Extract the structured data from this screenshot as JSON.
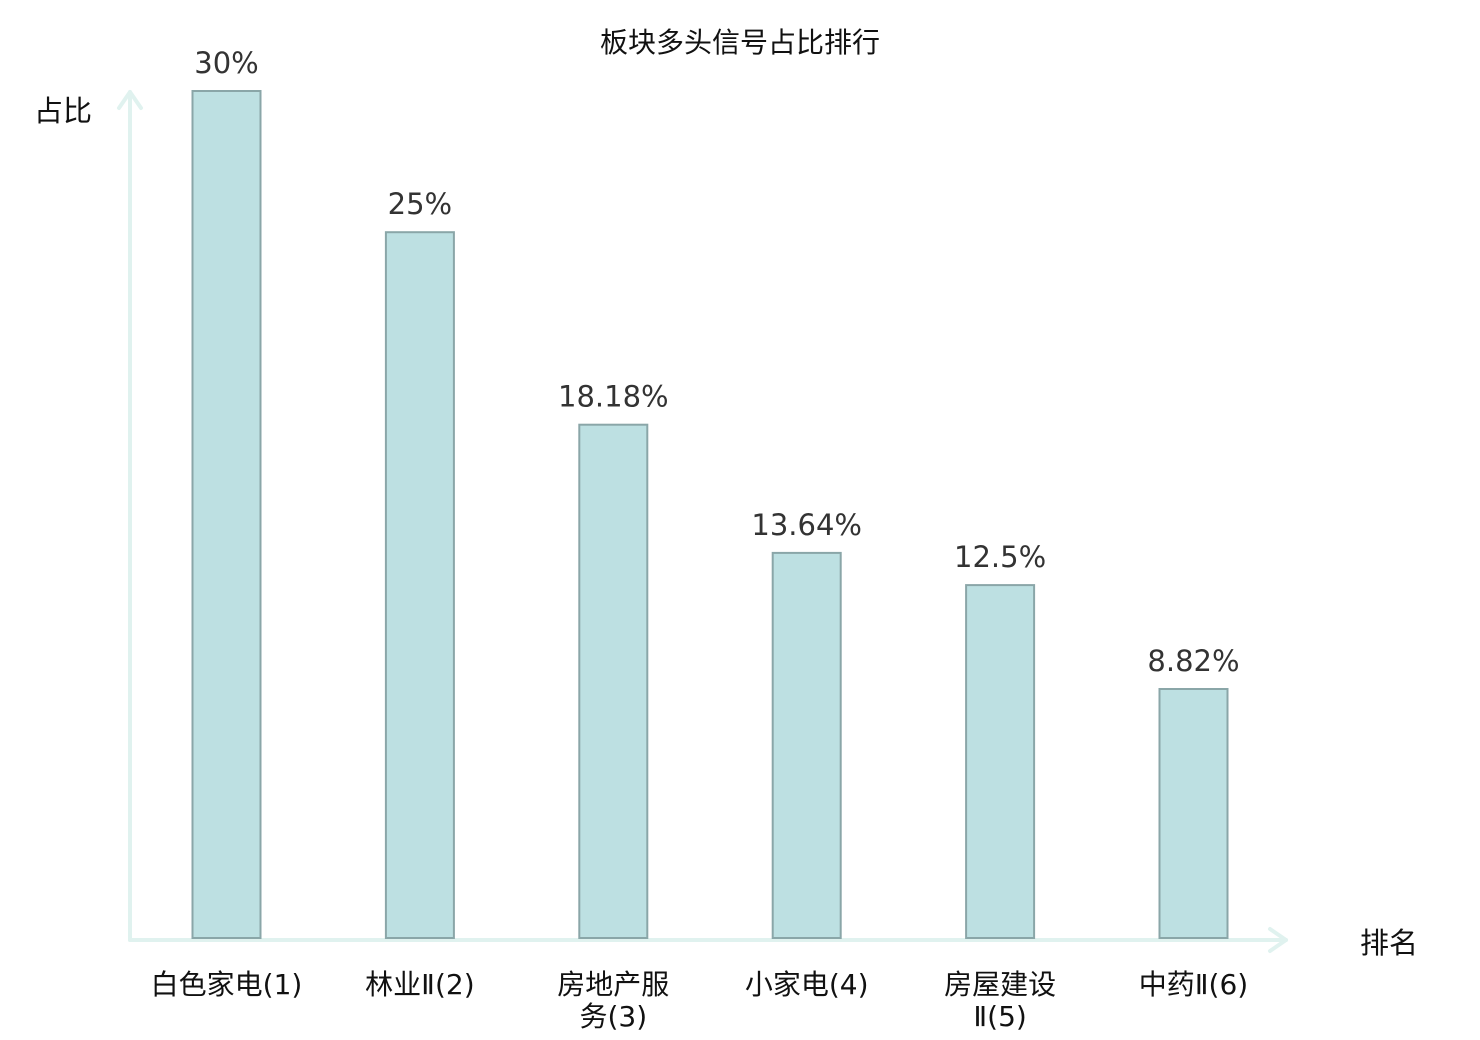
{
  "chart_data": {
    "type": "bar",
    "title": "板块多头信号占比排行",
    "ylabel": "占比",
    "xlabel": "排名",
    "categories": [
      [
        "白色家电(1)"
      ],
      [
        "林业Ⅱ(2)"
      ],
      [
        "房地产服",
        "务(3)"
      ],
      [
        "小家电(4)"
      ],
      [
        "房屋建设",
        "Ⅱ(5)"
      ],
      [
        "中药Ⅱ(6)"
      ]
    ],
    "values": [
      30,
      25,
      18.18,
      13.64,
      12.5,
      8.82
    ],
    "value_labels": [
      "30%",
      "25%",
      "18.18%",
      "13.64%",
      "12.5%",
      "8.82%"
    ],
    "highlight_index": 5,
    "ylim": [
      0,
      30
    ],
    "grid": false,
    "legend": "none",
    "colors": {
      "bar_fill": "#bde0e2",
      "bar_stroke": "#8aa6a8",
      "axis": "#e0f2ef",
      "highlight_label": "#e01010",
      "text": "#111111"
    }
  }
}
